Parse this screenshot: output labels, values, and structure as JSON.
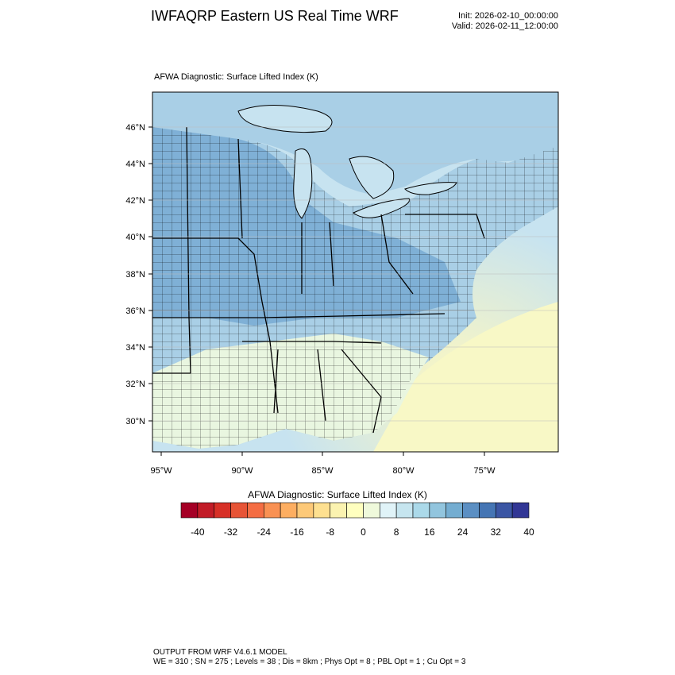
{
  "header": {
    "title": "IWFAQRP Eastern US Real Time WRF",
    "init": "Init: 2026-02-10_00:00:00",
    "valid": "Valid: 2026-02-11_12:00:00"
  },
  "map": {
    "field_label": "AFWA Diagnostic: Surface Lifted Index   (K)",
    "lat_labels": [
      "46°N",
      "44°N",
      "42°N",
      "40°N",
      "38°N",
      "36°N",
      "34°N",
      "32°N",
      "30°N"
    ],
    "lon_labels": [
      "95°W",
      "90°W",
      "85°W",
      "80°W",
      "75°W"
    ],
    "colors": {
      "land_cool": "#7fb0d6",
      "land_mid": "#a9cfe6",
      "land_warm": "#e9f6e0",
      "water_cool": "#c7e3f0",
      "water_warm": "#f8f8c6",
      "county_lines": "#000000"
    }
  },
  "colorbar": {
    "title": "AFWA Diagnostic: Surface Lifted Index  (K)",
    "tick_labels": [
      "-40",
      "-32",
      "-24",
      "-16",
      "-8",
      "0",
      "8",
      "16",
      "24",
      "32",
      "40"
    ],
    "colors": [
      "#a50026",
      "#c21c27",
      "#d73027",
      "#e75436",
      "#f46d43",
      "#f99153",
      "#fdae61",
      "#fdc978",
      "#fee090",
      "#fbf3b0",
      "#ffffbf",
      "#eff9db",
      "#e0f3f8",
      "#c6e5ef",
      "#abd9e9",
      "#92c5de",
      "#74add1",
      "#5b8fc3",
      "#4575b4",
      "#3b56a4",
      "#313695"
    ]
  },
  "footer": {
    "line1": "OUTPUT FROM WRF V4.6.1 MODEL",
    "line2": "WE = 310 ; SN = 275 ; Levels = 38 ; Dis = 8km ; Phys Opt = 8 ; PBL Opt = 1 ; Cu Opt = 3"
  }
}
